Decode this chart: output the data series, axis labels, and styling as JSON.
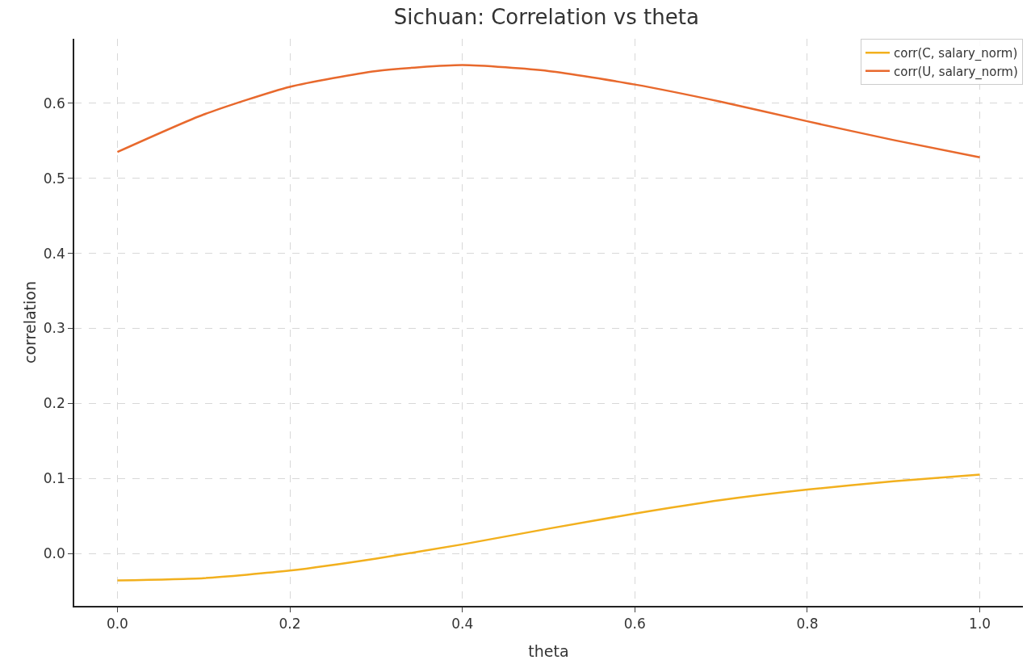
{
  "chart_data": {
    "type": "line",
    "title": "Sichuan: Correlation vs theta",
    "xlabel": "theta",
    "ylabel": "correlation",
    "x": [
      0,
      0.1,
      0.2,
      0.3,
      0.4,
      0.5,
      0.6,
      0.7,
      0.8,
      0.9,
      1.0
    ],
    "series": [
      {
        "name": "corr(C, salary_norm)",
        "color": "#f2b01e",
        "values": [
          -0.036,
          -0.033,
          -0.023,
          -0.007,
          0.012,
          0.033,
          0.053,
          0.071,
          0.085,
          0.096,
          0.105
        ]
      },
      {
        "name": "corr(U, salary_norm)",
        "color": "#e8692d",
        "values": [
          0.535,
          0.585,
          0.622,
          0.643,
          0.651,
          0.643,
          0.625,
          0.602,
          0.576,
          0.551,
          0.528
        ]
      }
    ],
    "xlim": [
      -0.05,
      1.05
    ],
    "xticks": [
      {
        "value": 0,
        "label": "0.0"
      },
      0.2,
      0.4,
      0.6,
      0.8,
      {
        "value": 1,
        "label": "1.0"
      }
    ],
    "ylim": [
      -0.07,
      0.686
    ],
    "yticks": [
      {
        "value": 0,
        "label": "0.0"
      },
      0.1,
      0.2,
      0.3,
      0.4,
      0.5,
      0.6
    ],
    "grid": true,
    "legend": "top right",
    "marker": "none",
    "line_style": "solid"
  }
}
